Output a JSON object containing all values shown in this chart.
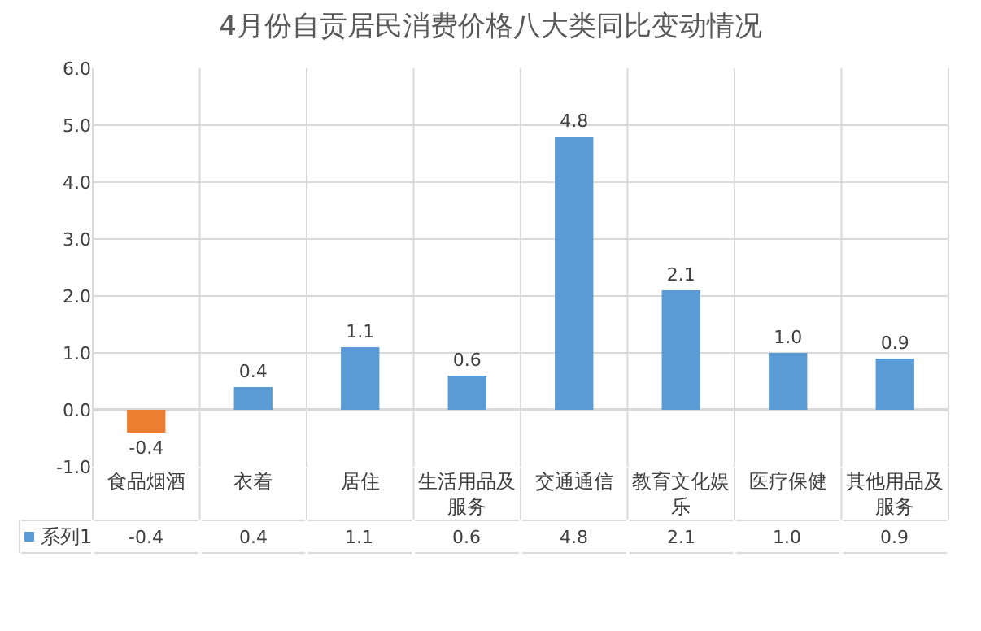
{
  "chart_data": {
    "type": "bar",
    "title": "4月份自贡居民消费价格八大类同比变动情况",
    "categories": [
      "食品烟酒",
      "衣着",
      "居住",
      "生活用品及服务",
      "交通通信",
      "教育文化娱乐",
      "医疗保健",
      "其他用品及服务"
    ],
    "series": [
      {
        "name": "系列1",
        "color": "#5b9bd5",
        "colors": [
          "#ed7d31",
          "#5b9bd5",
          "#5b9bd5",
          "#5b9bd5",
          "#5b9bd5",
          "#5b9bd5",
          "#5b9bd5",
          "#5b9bd5"
        ],
        "values": [
          -0.4,
          0.4,
          1.1,
          0.6,
          4.8,
          2.1,
          1.0,
          0.9
        ],
        "value_labels": [
          "-0.4",
          "0.4",
          "1.1",
          "0.6",
          "4.8",
          "2.1",
          "1.0",
          "0.9"
        ]
      }
    ],
    "ylim": [
      -1,
      6
    ],
    "yticks": [
      {
        "value": -1,
        "label": "-1.0"
      },
      {
        "value": 0,
        "label": "0.0"
      },
      {
        "value": 1,
        "label": "1.0"
      },
      {
        "value": 2,
        "label": "2.0"
      },
      {
        "value": 3,
        "label": "3.0"
      },
      {
        "value": 4,
        "label": "4.0"
      },
      {
        "value": 5,
        "label": "5.0"
      },
      {
        "value": 6,
        "label": "6.0"
      }
    ],
    "grid": true
  }
}
